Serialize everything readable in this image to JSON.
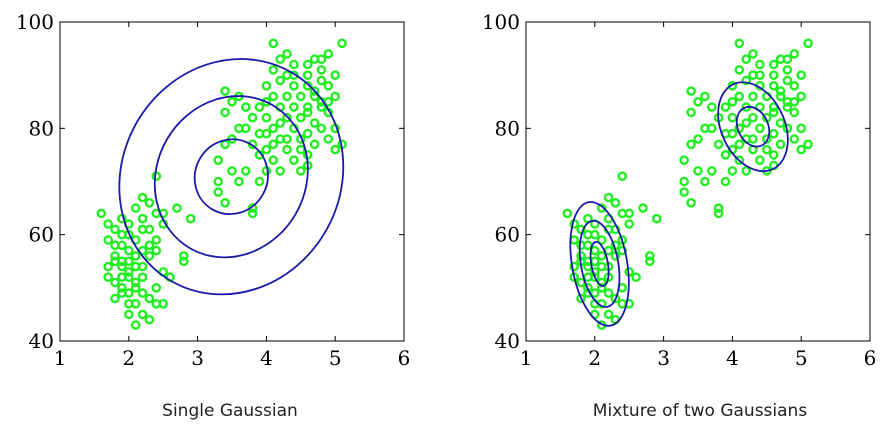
{
  "chart_data": [
    {
      "type": "scatter",
      "caption": "Single Gaussian",
      "xlim": [
        1,
        6
      ],
      "ylim": [
        40,
        100
      ],
      "xticks": [
        1,
        2,
        3,
        4,
        5,
        6
      ],
      "yticks": [
        40,
        60,
        80,
        100
      ],
      "point_color": "#22ee22",
      "contour_color": "#1a1aa8",
      "points": [
        [
          1.6,
          64
        ],
        [
          1.7,
          62
        ],
        [
          1.7,
          59
        ],
        [
          1.8,
          58
        ],
        [
          1.8,
          55
        ],
        [
          1.7,
          52
        ],
        [
          1.9,
          52
        ],
        [
          1.9,
          50
        ],
        [
          1.8,
          48
        ],
        [
          2.0,
          47
        ],
        [
          2.0,
          45
        ],
        [
          2.1,
          43
        ],
        [
          1.9,
          55
        ],
        [
          2.0,
          57
        ],
        [
          2.1,
          59
        ],
        [
          2.2,
          61
        ],
        [
          2.0,
          53
        ],
        [
          2.1,
          51
        ],
        [
          2.2,
          49
        ],
        [
          2.3,
          48
        ],
        [
          2.2,
          54
        ],
        [
          2.1,
          56
        ],
        [
          1.9,
          60
        ],
        [
          2.2,
          63
        ],
        [
          2.1,
          65
        ],
        [
          2.2,
          67
        ],
        [
          2.0,
          62
        ],
        [
          2.3,
          58
        ],
        [
          2.4,
          57
        ],
        [
          2.5,
          53
        ],
        [
          2.4,
          50
        ],
        [
          2.4,
          47
        ],
        [
          2.6,
          52
        ],
        [
          2.4,
          64
        ],
        [
          2.3,
          66
        ],
        [
          2.5,
          64
        ],
        [
          2.4,
          71
        ],
        [
          2.7,
          65
        ],
        [
          2.9,
          63
        ],
        [
          2.8,
          56
        ],
        [
          2.8,
          55
        ],
        [
          3.3,
          68
        ],
        [
          3.4,
          66
        ],
        [
          3.3,
          74
        ],
        [
          3.5,
          72
        ],
        [
          3.4,
          77
        ],
        [
          3.5,
          78
        ],
        [
          3.6,
          80
        ],
        [
          3.4,
          83
        ],
        [
          3.5,
          85
        ],
        [
          3.4,
          87
        ],
        [
          3.7,
          80
        ],
        [
          3.8,
          77
        ],
        [
          3.9,
          75
        ],
        [
          3.7,
          72
        ],
        [
          3.9,
          70
        ],
        [
          3.8,
          65
        ],
        [
          3.8,
          64
        ],
        [
          4.0,
          72
        ],
        [
          4.1,
          74
        ],
        [
          4.0,
          76
        ],
        [
          4.2,
          78
        ],
        [
          4.1,
          80
        ],
        [
          4.0,
          82
        ],
        [
          4.2,
          84
        ],
        [
          4.1,
          86
        ],
        [
          4.0,
          88
        ],
        [
          4.1,
          91
        ],
        [
          4.2,
          93
        ],
        [
          4.3,
          90
        ],
        [
          4.4,
          88
        ],
        [
          4.3,
          86
        ],
        [
          4.4,
          84
        ],
        [
          4.3,
          82
        ],
        [
          4.4,
          80
        ],
        [
          4.5,
          78
        ],
        [
          4.5,
          76
        ],
        [
          4.4,
          74
        ],
        [
          4.6,
          73
        ],
        [
          4.6,
          75
        ],
        [
          4.7,
          77
        ],
        [
          4.6,
          79
        ],
        [
          4.7,
          81
        ],
        [
          4.6,
          83
        ],
        [
          4.8,
          85
        ],
        [
          4.7,
          87
        ],
        [
          4.8,
          89
        ],
        [
          4.6,
          90
        ],
        [
          4.7,
          93
        ],
        [
          4.9,
          94
        ],
        [
          4.8,
          91
        ],
        [
          4.9,
          88
        ],
        [
          5.0,
          86
        ],
        [
          4.9,
          83
        ],
        [
          5.0,
          80
        ],
        [
          5.1,
          77
        ],
        [
          5.0,
          76
        ],
        [
          5.1,
          96
        ],
        [
          4.5,
          72
        ],
        [
          4.3,
          76
        ],
        [
          4.2,
          72
        ],
        [
          3.6,
          70
        ],
        [
          3.3,
          70
        ],
        [
          3.6,
          86
        ],
        [
          3.9,
          84
        ],
        [
          4.1,
          96
        ],
        [
          4.3,
          94
        ],
        [
          4.5,
          86
        ],
        [
          4.4,
          92
        ],
        [
          4.6,
          88
        ],
        [
          4.8,
          80
        ],
        [
          4.9,
          78
        ],
        [
          4.0,
          79
        ],
        [
          4.2,
          81
        ],
        [
          3.8,
          82
        ],
        [
          3.7,
          84
        ],
        [
          4.5,
          82
        ],
        [
          4.6,
          84
        ],
        [
          4.8,
          84
        ],
        [
          4.3,
          78
        ],
        [
          4.1,
          77
        ],
        [
          3.9,
          79
        ],
        [
          4.0,
          85
        ],
        [
          4.2,
          89
        ],
        [
          4.4,
          90
        ],
        [
          4.7,
          86
        ],
        [
          4.6,
          92
        ],
        [
          4.8,
          93
        ],
        [
          5.0,
          90
        ],
        [
          4.9,
          85
        ],
        [
          1.8,
          61
        ],
        [
          1.9,
          58
        ],
        [
          2.0,
          60
        ],
        [
          1.8,
          56
        ],
        [
          1.9,
          54
        ],
        [
          2.0,
          52
        ],
        [
          2.1,
          50
        ],
        [
          1.9,
          49
        ],
        [
          2.1,
          47
        ],
        [
          2.0,
          49
        ],
        [
          1.7,
          54
        ],
        [
          1.8,
          51
        ],
        [
          2.2,
          57
        ],
        [
          2.1,
          54
        ],
        [
          2.3,
          56
        ],
        [
          2.2,
          52
        ],
        [
          2.0,
          55
        ],
        [
          1.9,
          63
        ],
        [
          2.3,
          61
        ],
        [
          2.4,
          59
        ],
        [
          2.5,
          62
        ],
        [
          2.2,
          45
        ],
        [
          2.3,
          44
        ],
        [
          2.5,
          47
        ]
      ],
      "ellipses": [
        {
          "cx": 3.49,
          "cy": 70.9,
          "sx": 0.55,
          "sy": 6.8,
          "angle": -60,
          "l": 1
        },
        {
          "cx": 3.49,
          "cy": 70.9,
          "sx": 1.2,
          "sy": 14,
          "angle": -60,
          "l": 1
        },
        {
          "cx": 3.49,
          "cy": 70.9,
          "sx": 1.75,
          "sy": 20.5,
          "angle": -60,
          "l": 1
        }
      ]
    },
    {
      "type": "scatter",
      "caption": "Mixture of two Gaussians",
      "xlim": [
        1,
        6
      ],
      "ylim": [
        40,
        100
      ],
      "xticks": [
        1,
        2,
        3,
        4,
        5,
        6
      ],
      "yticks": [
        40,
        60,
        80,
        100
      ],
      "point_color": "#22ee22",
      "contour_color": "#1a1aa8",
      "points": [
        [
          1.6,
          64
        ],
        [
          1.7,
          62
        ],
        [
          1.7,
          59
        ],
        [
          1.8,
          58
        ],
        [
          1.8,
          55
        ],
        [
          1.7,
          52
        ],
        [
          1.9,
          52
        ],
        [
          1.9,
          50
        ],
        [
          1.8,
          48
        ],
        [
          2.0,
          47
        ],
        [
          2.0,
          45
        ],
        [
          2.1,
          43
        ],
        [
          1.9,
          55
        ],
        [
          2.0,
          57
        ],
        [
          2.1,
          59
        ],
        [
          2.2,
          61
        ],
        [
          2.0,
          53
        ],
        [
          2.1,
          51
        ],
        [
          2.2,
          49
        ],
        [
          2.3,
          48
        ],
        [
          2.2,
          54
        ],
        [
          2.1,
          56
        ],
        [
          1.9,
          60
        ],
        [
          2.2,
          63
        ],
        [
          2.1,
          65
        ],
        [
          2.2,
          67
        ],
        [
          2.0,
          62
        ],
        [
          2.3,
          58
        ],
        [
          2.4,
          57
        ],
        [
          2.5,
          53
        ],
        [
          2.4,
          50
        ],
        [
          2.4,
          47
        ],
        [
          2.6,
          52
        ],
        [
          2.4,
          64
        ],
        [
          2.3,
          66
        ],
        [
          2.5,
          64
        ],
        [
          2.4,
          71
        ],
        [
          2.7,
          65
        ],
        [
          2.9,
          63
        ],
        [
          2.8,
          56
        ],
        [
          2.8,
          55
        ],
        [
          3.3,
          68
        ],
        [
          3.4,
          66
        ],
        [
          3.3,
          74
        ],
        [
          3.5,
          72
        ],
        [
          3.4,
          77
        ],
        [
          3.5,
          78
        ],
        [
          3.6,
          80
        ],
        [
          3.4,
          83
        ],
        [
          3.5,
          85
        ],
        [
          3.4,
          87
        ],
        [
          3.7,
          80
        ],
        [
          3.8,
          77
        ],
        [
          3.9,
          75
        ],
        [
          3.7,
          72
        ],
        [
          3.9,
          70
        ],
        [
          3.8,
          65
        ],
        [
          3.8,
          64
        ],
        [
          4.0,
          72
        ],
        [
          4.1,
          74
        ],
        [
          4.0,
          76
        ],
        [
          4.2,
          78
        ],
        [
          4.1,
          80
        ],
        [
          4.0,
          82
        ],
        [
          4.2,
          84
        ],
        [
          4.1,
          86
        ],
        [
          4.0,
          88
        ],
        [
          4.1,
          91
        ],
        [
          4.2,
          93
        ],
        [
          4.3,
          90
        ],
        [
          4.4,
          88
        ],
        [
          4.3,
          86
        ],
        [
          4.4,
          84
        ],
        [
          4.3,
          82
        ],
        [
          4.4,
          80
        ],
        [
          4.5,
          78
        ],
        [
          4.5,
          76
        ],
        [
          4.4,
          74
        ],
        [
          4.6,
          73
        ],
        [
          4.6,
          75
        ],
        [
          4.7,
          77
        ],
        [
          4.6,
          79
        ],
        [
          4.7,
          81
        ],
        [
          4.6,
          83
        ],
        [
          4.8,
          85
        ],
        [
          4.7,
          87
        ],
        [
          4.8,
          89
        ],
        [
          4.6,
          90
        ],
        [
          4.7,
          93
        ],
        [
          4.9,
          94
        ],
        [
          4.8,
          91
        ],
        [
          4.9,
          88
        ],
        [
          5.0,
          86
        ],
        [
          4.9,
          83
        ],
        [
          5.0,
          80
        ],
        [
          5.1,
          77
        ],
        [
          5.0,
          76
        ],
        [
          5.1,
          96
        ],
        [
          4.5,
          72
        ],
        [
          4.3,
          76
        ],
        [
          4.2,
          72
        ],
        [
          3.6,
          70
        ],
        [
          3.3,
          70
        ],
        [
          3.6,
          86
        ],
        [
          3.9,
          84
        ],
        [
          4.1,
          96
        ],
        [
          4.3,
          94
        ],
        [
          4.5,
          86
        ],
        [
          4.4,
          92
        ],
        [
          4.6,
          88
        ],
        [
          4.8,
          80
        ],
        [
          4.9,
          78
        ],
        [
          4.0,
          79
        ],
        [
          4.2,
          81
        ],
        [
          3.8,
          82
        ],
        [
          3.7,
          84
        ],
        [
          4.5,
          82
        ],
        [
          4.6,
          84
        ],
        [
          4.8,
          84
        ],
        [
          4.3,
          78
        ],
        [
          4.1,
          77
        ],
        [
          3.9,
          79
        ],
        [
          4.0,
          85
        ],
        [
          4.2,
          89
        ],
        [
          4.4,
          90
        ],
        [
          4.7,
          86
        ],
        [
          4.6,
          92
        ],
        [
          4.8,
          93
        ],
        [
          5.0,
          90
        ],
        [
          4.9,
          85
        ],
        [
          1.8,
          61
        ],
        [
          1.9,
          58
        ],
        [
          2.0,
          60
        ],
        [
          1.8,
          56
        ],
        [
          1.9,
          54
        ],
        [
          2.0,
          52
        ],
        [
          2.1,
          50
        ],
        [
          1.9,
          49
        ],
        [
          2.1,
          47
        ],
        [
          2.0,
          49
        ],
        [
          1.7,
          54
        ],
        [
          1.8,
          51
        ],
        [
          2.2,
          57
        ],
        [
          2.1,
          54
        ],
        [
          2.3,
          56
        ],
        [
          2.2,
          52
        ],
        [
          2.0,
          55
        ],
        [
          1.9,
          63
        ],
        [
          2.3,
          61
        ],
        [
          2.4,
          59
        ],
        [
          2.5,
          62
        ],
        [
          2.2,
          45
        ],
        [
          2.3,
          44
        ],
        [
          2.5,
          47
        ]
      ],
      "ellipses": [
        {
          "cx": 2.07,
          "cy": 54.5,
          "sx": 0.12,
          "sy": 4.2,
          "angle": -10,
          "l": 1
        },
        {
          "cx": 2.07,
          "cy": 54.5,
          "sx": 0.27,
          "sy": 8.2,
          "angle": -10,
          "l": 1
        },
        {
          "cx": 2.07,
          "cy": 54.5,
          "sx": 0.4,
          "sy": 11.8,
          "angle": -10,
          "l": 1
        },
        {
          "cx": 4.3,
          "cy": 80.3,
          "sx": 0.22,
          "sy": 3.9,
          "angle": -25,
          "l": 1
        },
        {
          "cx": 4.3,
          "cy": 80.3,
          "sx": 0.46,
          "sy": 8.8,
          "angle": -25,
          "l": 1
        }
      ]
    }
  ]
}
